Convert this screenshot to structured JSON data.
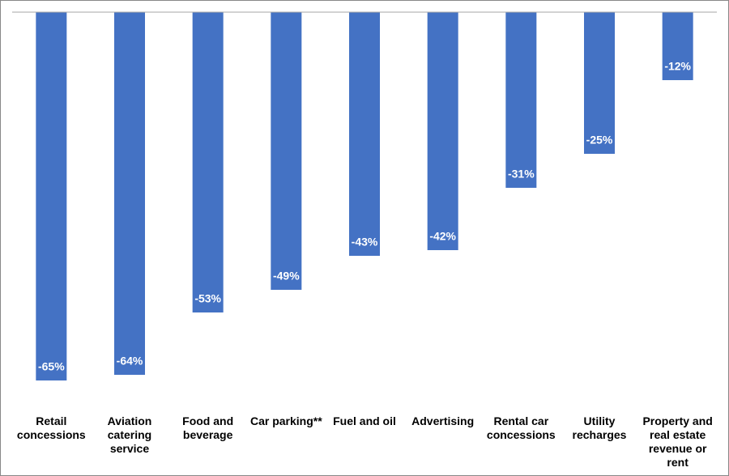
{
  "chart_data": {
    "type": "bar",
    "categories": [
      "Retail concessions",
      "Aviation catering service",
      "Food and beverage",
      "Car parking**",
      "Fuel and oil",
      "Advertising",
      "Rental car concessions",
      "Utility recharges",
      "Property and real estate revenue or rent"
    ],
    "values": [
      -65,
      -64,
      -53,
      -49,
      -43,
      -42,
      -31,
      -25,
      -12
    ],
    "value_labels": [
      "-65%",
      "-64%",
      "-53%",
      "-49%",
      "-43%",
      "-42%",
      "-31%",
      "-25%",
      "-12%"
    ],
    "color": "#4472c4",
    "ylim": [
      -70,
      0
    ]
  }
}
